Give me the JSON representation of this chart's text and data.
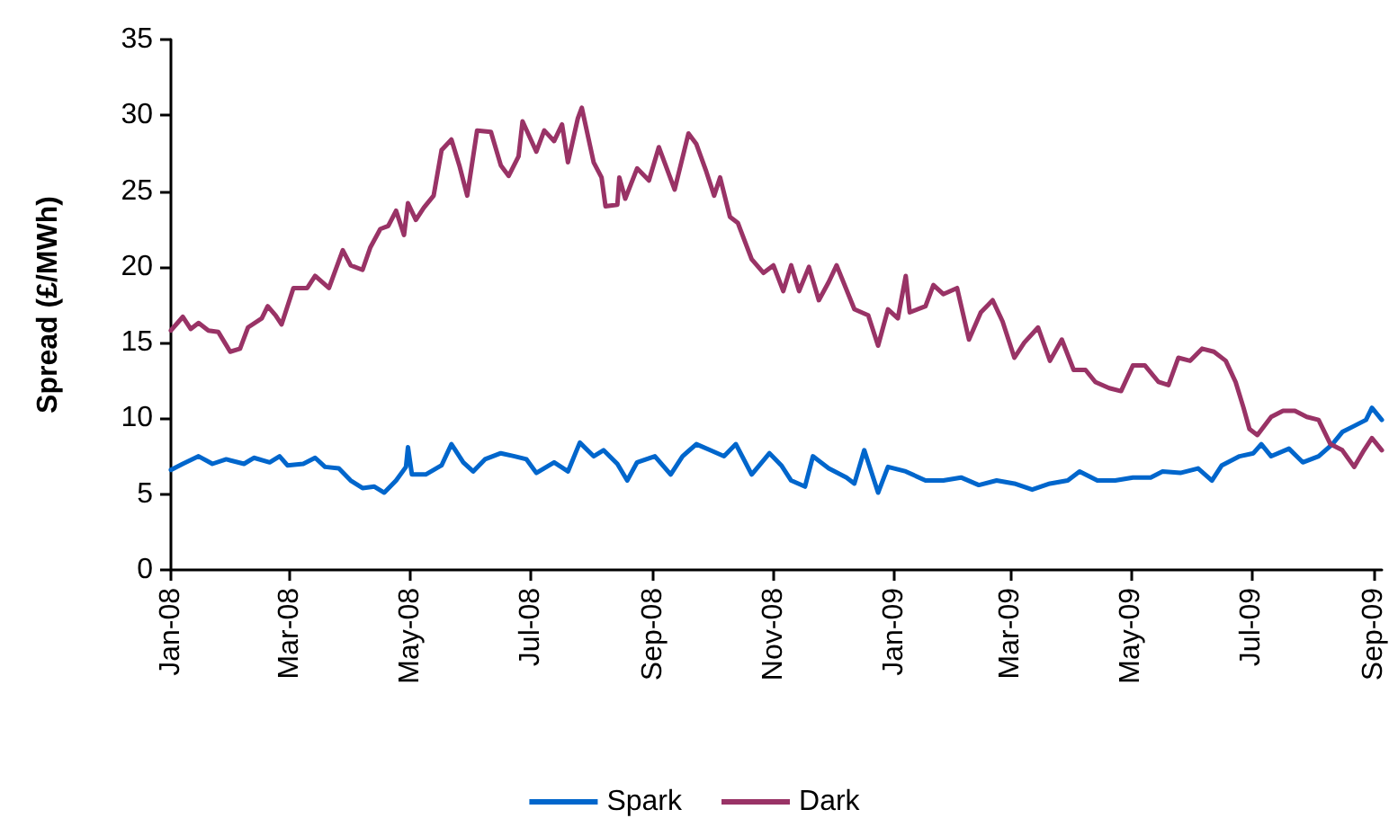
{
  "chart_data": {
    "type": "line",
    "ylabel": "Spread (£/MWh)",
    "xlim": [
      "2008-01-01",
      "2009-09-05"
    ],
    "xticks": [
      {
        "value": "2008-01",
        "label": "Jan-08"
      },
      {
        "value": "2008-03",
        "label": "Mar-08"
      },
      {
        "value": "2008-05",
        "label": "May-08"
      },
      {
        "value": "2008-07",
        "label": "Jul-08"
      },
      {
        "value": "2008-09",
        "label": "Sep-08"
      },
      {
        "value": "2008-11",
        "label": "Nov-08"
      },
      {
        "value": "2009-01",
        "label": "Jan-09"
      },
      {
        "value": "2009-03",
        "label": "Mar-09"
      },
      {
        "value": "2009-05",
        "label": "May-09"
      },
      {
        "value": "2009-07",
        "label": "Jul-09"
      },
      {
        "value": "2009-09",
        "label": "Sep-09"
      }
    ],
    "ylim": [
      0,
      35
    ],
    "yticks": [
      0,
      5,
      10,
      15,
      20,
      25,
      30,
      35
    ],
    "grid": false,
    "legend": "bottom",
    "marker": "none",
    "line_style": "solid",
    "series": [
      {
        "name": "Spark",
        "color": "#0066cc",
        "x": [
          "2008-01-01",
          "2008-01-07",
          "2008-01-15",
          "2008-01-22",
          "2008-01-29",
          "2008-02-07",
          "2008-02-12",
          "2008-02-20",
          "2008-02-25",
          "2008-02-29",
          "2008-03-08",
          "2008-03-14",
          "2008-03-19",
          "2008-03-26",
          "2008-04-01",
          "2008-04-07",
          "2008-04-13",
          "2008-04-18",
          "2008-04-24",
          "2008-04-29",
          "2008-04-30",
          "2008-05-02",
          "2008-05-09",
          "2008-05-17",
          "2008-05-22",
          "2008-05-28",
          "2008-06-02",
          "2008-06-08",
          "2008-06-16",
          "2008-06-23",
          "2008-06-29",
          "2008-07-04",
          "2008-07-13",
          "2008-07-20",
          "2008-07-26",
          "2008-08-02",
          "2008-08-07",
          "2008-08-14",
          "2008-08-19",
          "2008-08-24",
          "2008-09-02",
          "2008-09-10",
          "2008-09-16",
          "2008-09-23",
          "2008-09-30",
          "2008-10-07",
          "2008-10-13",
          "2008-10-21",
          "2008-10-30",
          "2008-11-05",
          "2008-11-10",
          "2008-11-17",
          "2008-11-21",
          "2008-11-29",
          "2008-12-08",
          "2008-12-12",
          "2008-12-17",
          "2008-12-24",
          "2008-12-29",
          "2009-01-07",
          "2009-01-17",
          "2009-01-26",
          "2009-02-04",
          "2009-02-13",
          "2009-02-22",
          "2009-03-03",
          "2009-03-12",
          "2009-03-21",
          "2009-03-30",
          "2009-04-05",
          "2009-04-14",
          "2009-04-23",
          "2009-05-02",
          "2009-05-11",
          "2009-05-17",
          "2009-05-26",
          "2009-06-04",
          "2009-06-11",
          "2009-06-16",
          "2009-06-25",
          "2009-07-02",
          "2009-07-06",
          "2009-07-11",
          "2009-07-20",
          "2009-07-27",
          "2009-08-04",
          "2009-08-11",
          "2009-08-16",
          "2009-08-22",
          "2009-08-28",
          "2009-08-31",
          "2009-09-05"
        ],
        "values": [
          6.6,
          7.0,
          7.5,
          7.0,
          7.3,
          7.0,
          7.4,
          7.1,
          7.5,
          6.9,
          7.0,
          7.4,
          6.8,
          6.7,
          5.9,
          5.4,
          5.5,
          5.1,
          5.9,
          6.8,
          8.1,
          6.3,
          6.3,
          6.9,
          8.3,
          7.1,
          6.5,
          7.3,
          7.7,
          7.5,
          7.3,
          6.4,
          7.1,
          6.5,
          8.4,
          7.5,
          7.9,
          7.0,
          5.9,
          7.1,
          7.5,
          6.3,
          7.5,
          8.3,
          7.9,
          7.5,
          8.3,
          6.3,
          7.7,
          6.9,
          5.9,
          5.5,
          7.5,
          6.7,
          6.1,
          5.7,
          7.9,
          5.1,
          6.8,
          6.5,
          5.9,
          5.9,
          6.1,
          5.6,
          5.9,
          5.7,
          5.3,
          5.7,
          5.9,
          6.5,
          5.9,
          5.9,
          6.1,
          6.1,
          6.5,
          6.4,
          6.7,
          5.9,
          6.9,
          7.5,
          7.7,
          8.3,
          7.5,
          8.0,
          7.1,
          7.5,
          8.3,
          9.1,
          9.5,
          9.9,
          10.7,
          9.9
        ]
      },
      {
        "name": "Dark",
        "color": "#993366",
        "x": [
          "2008-01-01",
          "2008-01-07",
          "2008-01-11",
          "2008-01-15",
          "2008-01-20",
          "2008-01-25",
          "2008-01-31",
          "2008-02-05",
          "2008-02-09",
          "2008-02-16",
          "2008-02-19",
          "2008-02-23",
          "2008-02-26",
          "2008-03-01",
          "2008-03-03",
          "2008-03-10",
          "2008-03-14",
          "2008-03-21",
          "2008-03-28",
          "2008-04-01",
          "2008-04-07",
          "2008-04-11",
          "2008-04-16",
          "2008-04-20",
          "2008-04-24",
          "2008-04-28",
          "2008-04-30",
          "2008-05-04",
          "2008-05-08",
          "2008-05-13",
          "2008-05-17",
          "2008-05-22",
          "2008-05-26",
          "2008-05-30",
          "2008-06-04",
          "2008-06-11",
          "2008-06-16",
          "2008-06-20",
          "2008-06-25",
          "2008-06-27",
          "2008-07-04",
          "2008-07-08",
          "2008-07-13",
          "2008-07-17",
          "2008-07-20",
          "2008-07-25",
          "2008-07-27",
          "2008-08-02",
          "2008-08-06",
          "2008-08-08",
          "2008-08-14",
          "2008-08-15",
          "2008-08-18",
          "2008-08-24",
          "2008-08-30",
          "2008-09-04",
          "2008-09-12",
          "2008-09-19",
          "2008-09-23",
          "2008-09-28",
          "2008-10-02",
          "2008-10-05",
          "2008-10-10",
          "2008-10-14",
          "2008-10-21",
          "2008-10-27",
          "2008-11-01",
          "2008-11-06",
          "2008-11-10",
          "2008-11-14",
          "2008-11-19",
          "2008-11-24",
          "2008-11-29",
          "2008-12-03",
          "2008-12-12",
          "2008-12-19",
          "2008-12-24",
          "2008-12-29",
          "2009-01-03",
          "2009-01-07",
          "2009-01-09",
          "2009-01-17",
          "2009-01-21",
          "2009-01-26",
          "2009-02-02",
          "2009-02-08",
          "2009-02-14",
          "2009-02-20",
          "2009-02-25",
          "2009-03-03",
          "2009-03-08",
          "2009-03-15",
          "2009-03-21",
          "2009-03-27",
          "2009-04-02",
          "2009-04-08",
          "2009-04-13",
          "2009-04-20",
          "2009-04-26",
          "2009-05-02",
          "2009-05-08",
          "2009-05-15",
          "2009-05-20",
          "2009-05-25",
          "2009-05-31",
          "2009-06-06",
          "2009-06-12",
          "2009-06-18",
          "2009-06-23",
          "2009-06-27",
          "2009-06-30",
          "2009-07-04",
          "2009-07-11",
          "2009-07-17",
          "2009-07-23",
          "2009-07-29",
          "2009-08-04",
          "2009-08-10",
          "2009-08-16",
          "2009-08-22",
          "2009-08-27",
          "2009-08-31",
          "2009-09-05"
        ],
        "values": [
          15.8,
          16.7,
          15.9,
          16.3,
          15.8,
          15.7,
          14.4,
          14.6,
          16.0,
          16.6,
          17.4,
          16.8,
          16.2,
          17.8,
          18.6,
          18.6,
          19.4,
          18.6,
          21.1,
          20.1,
          19.8,
          21.3,
          22.5,
          22.7,
          23.7,
          22.1,
          24.2,
          23.1,
          23.9,
          24.7,
          27.7,
          28.4,
          26.7,
          24.7,
          29.0,
          28.9,
          26.7,
          26.0,
          27.3,
          29.6,
          27.6,
          29.0,
          28.3,
          29.4,
          26.9,
          29.8,
          30.5,
          26.9,
          25.9,
          24.0,
          24.1,
          25.9,
          24.5,
          26.5,
          25.7,
          27.9,
          25.1,
          28.8,
          28.1,
          26.3,
          24.7,
          25.9,
          23.3,
          22.9,
          20.5,
          19.6,
          20.1,
          18.4,
          20.1,
          18.4,
          20.0,
          17.8,
          19.0,
          20.1,
          17.2,
          16.8,
          14.8,
          17.2,
          16.6,
          19.4,
          17.0,
          17.4,
          18.8,
          18.2,
          18.6,
          15.2,
          17.0,
          17.8,
          16.4,
          14.0,
          15.0,
          16.0,
          13.8,
          15.2,
          13.2,
          13.2,
          12.4,
          12.0,
          11.8,
          13.5,
          13.5,
          12.4,
          12.2,
          14.0,
          13.8,
          14.6,
          14.4,
          13.8,
          12.4,
          10.7,
          9.3,
          8.9,
          10.1,
          10.5,
          10.5,
          10.1,
          9.9,
          8.3,
          7.9,
          6.8,
          7.9,
          8.7,
          7.9
        ]
      }
    ]
  }
}
